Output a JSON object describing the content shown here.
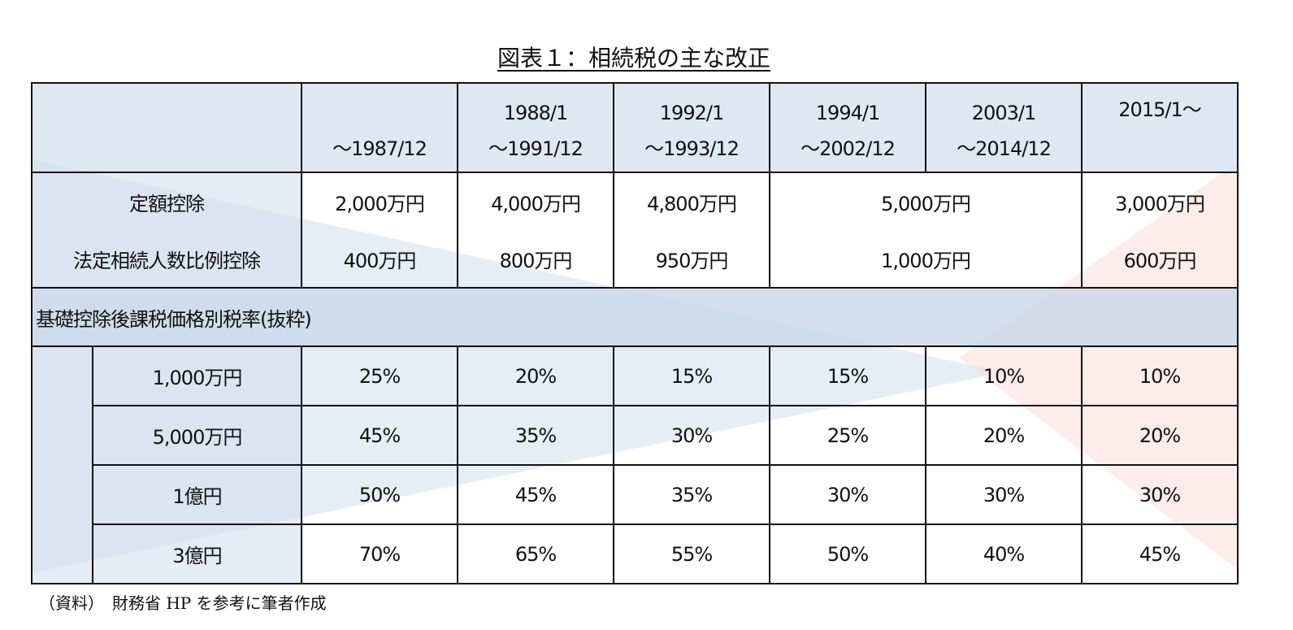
{
  "title": "図表１：相続税の主な改正",
  "header": [
    {
      "l1": "",
      "l2": "～1987/12"
    },
    {
      "l1": "1988/1",
      "l2": "～1991/12"
    },
    {
      "l1": "1992/1",
      "l2": "～1993/12"
    },
    {
      "l1": "1994/1",
      "l2": "～2002/12"
    },
    {
      "l1": "2003/1",
      "l2": "～2014/12"
    },
    {
      "l1": "2015/1～",
      "l2": ""
    }
  ],
  "deduction": {
    "fixed_label": "定額控除",
    "fixed": [
      "2,000万円",
      "4,000万円",
      "4,800万円",
      "5,000万円",
      "3,000万円"
    ],
    "per_heir_label": "法定相続人数比例控除",
    "per_heir": [
      "400万円",
      "800万円",
      "950万円",
      "1,000万円",
      "600万円"
    ]
  },
  "rates": {
    "section_label": "基礎控除後課税価格別税率(抜粋)",
    "rows": [
      {
        "label": "1,000万円",
        "values": [
          "25%",
          "20%",
          "15%",
          "15%",
          "10%",
          "10%"
        ]
      },
      {
        "label": "5,000万円",
        "values": [
          "45%",
          "35%",
          "30%",
          "25%",
          "20%",
          "20%"
        ]
      },
      {
        "label": "1億円",
        "values": [
          "50%",
          "45%",
          "35%",
          "30%",
          "30%",
          "30%"
        ]
      },
      {
        "label": "3億円",
        "values": [
          "70%",
          "65%",
          "55%",
          "50%",
          "40%",
          "45%"
        ]
      }
    ]
  },
  "footnote": "（資料）　財務省 HP を参考に筆者作成",
  "colors": {
    "header_bg": "#d2e0ee",
    "decoration_blue": "#c8d6e8",
    "decoration_pink": "#fbe0e0"
  }
}
